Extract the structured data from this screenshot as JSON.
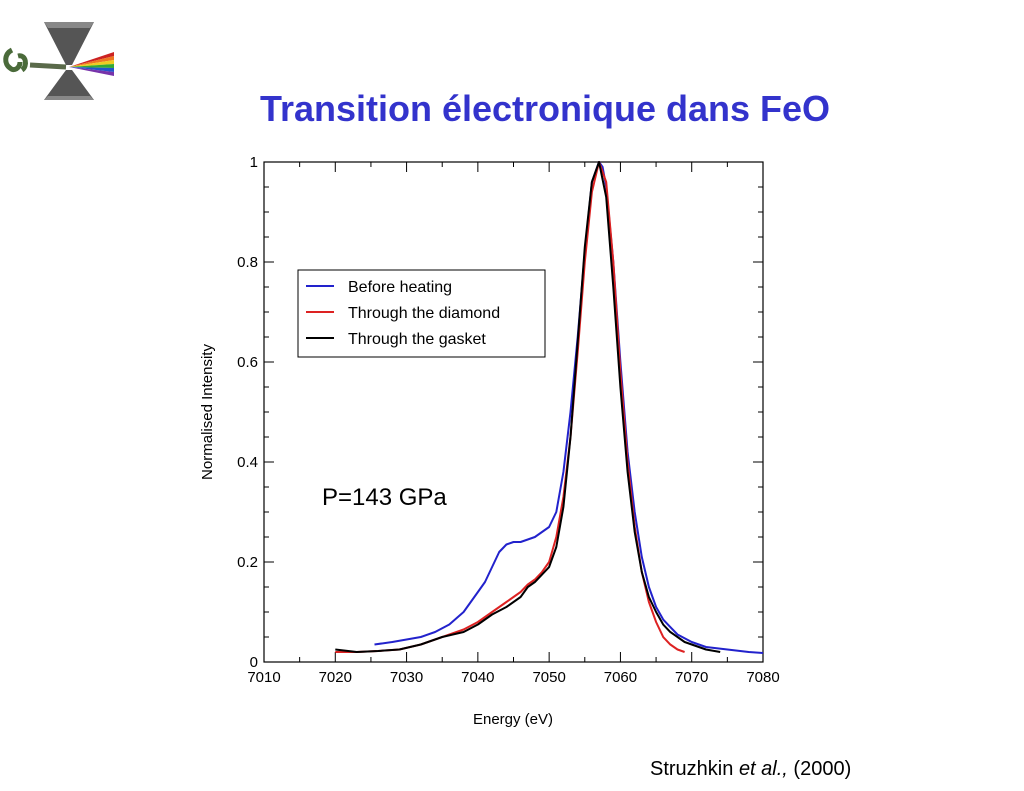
{
  "title": "Transition électronique dans FeO",
  "citation": {
    "author": "Struzhkin",
    "etal": "et al.,",
    "year": "(2000)"
  },
  "logo": {
    "icon": "diamond-anvil-cell-icon"
  },
  "chart_data": {
    "type": "line",
    "title": "",
    "xlabel": "Energy (eV)",
    "ylabel": "Normalised Intensity",
    "xlim": [
      7010,
      7080
    ],
    "ylim": [
      0,
      1
    ],
    "xticks": [
      7010,
      7020,
      7030,
      7040,
      7050,
      7060,
      7070,
      7080
    ],
    "yticks": [
      0,
      0.2,
      0.4,
      0.6,
      0.8,
      1
    ],
    "ytick_labels": [
      "0",
      "0.2",
      "0.4",
      "0.6",
      "0.8",
      "1"
    ],
    "annotation": "P=143 GPa",
    "legend_position": "upper-left",
    "grid": false,
    "series": [
      {
        "name": "Before heating",
        "color": "#2222cc",
        "x": [
          7025.5,
          7028,
          7030,
          7032,
          7034,
          7036,
          7038,
          7040,
          7041,
          7042,
          7043,
          7044,
          7045,
          7046,
          7047,
          7048,
          7049,
          7050,
          7051,
          7052,
          7053,
          7054,
          7055,
          7056,
          7057,
          7057.5,
          7058,
          7059,
          7060,
          7061,
          7062,
          7063,
          7064,
          7065,
          7066,
          7067,
          7068,
          7070,
          7072,
          7075,
          7078,
          7080
        ],
        "y": [
          0.035,
          0.04,
          0.045,
          0.05,
          0.06,
          0.075,
          0.1,
          0.14,
          0.16,
          0.19,
          0.22,
          0.235,
          0.24,
          0.24,
          0.245,
          0.25,
          0.26,
          0.27,
          0.3,
          0.38,
          0.5,
          0.65,
          0.82,
          0.96,
          1.0,
          0.99,
          0.95,
          0.8,
          0.6,
          0.42,
          0.3,
          0.21,
          0.15,
          0.11,
          0.085,
          0.07,
          0.055,
          0.04,
          0.03,
          0.025,
          0.02,
          0.018
        ]
      },
      {
        "name": "Through the diamond",
        "color": "#dd2222",
        "x": [
          7020,
          7023,
          7026,
          7029,
          7032,
          7035,
          7038,
          7040,
          7042,
          7044,
          7046,
          7047,
          7048,
          7049,
          7050,
          7051,
          7052,
          7053,
          7054,
          7055,
          7056,
          7057,
          7058,
          7059,
          7060,
          7061,
          7062,
          7063,
          7064,
          7065,
          7066,
          7067,
          7068,
          7069
        ],
        "y": [
          0.02,
          0.02,
          0.022,
          0.025,
          0.035,
          0.05,
          0.065,
          0.08,
          0.1,
          0.12,
          0.14,
          0.155,
          0.165,
          0.18,
          0.2,
          0.25,
          0.33,
          0.45,
          0.62,
          0.8,
          0.94,
          1.0,
          0.96,
          0.8,
          0.58,
          0.4,
          0.27,
          0.18,
          0.12,
          0.08,
          0.05,
          0.035,
          0.025,
          0.02
        ]
      },
      {
        "name": "Through the gasket",
        "color": "#000000",
        "x": [
          7020,
          7023,
          7026,
          7029,
          7032,
          7035,
          7038,
          7040,
          7042,
          7044,
          7046,
          7047,
          7048,
          7049,
          7050,
          7051,
          7052,
          7053,
          7054,
          7055,
          7056,
          7057,
          7058,
          7059,
          7060,
          7061,
          7062,
          7063,
          7064,
          7065,
          7066,
          7067,
          7068,
          7069,
          7070,
          7072,
          7074
        ],
        "y": [
          0.025,
          0.02,
          0.022,
          0.025,
          0.035,
          0.05,
          0.06,
          0.075,
          0.095,
          0.11,
          0.13,
          0.15,
          0.16,
          0.175,
          0.19,
          0.23,
          0.31,
          0.45,
          0.64,
          0.83,
          0.96,
          1.0,
          0.93,
          0.75,
          0.55,
          0.38,
          0.26,
          0.18,
          0.13,
          0.1,
          0.075,
          0.06,
          0.05,
          0.04,
          0.035,
          0.025,
          0.02
        ]
      }
    ]
  }
}
